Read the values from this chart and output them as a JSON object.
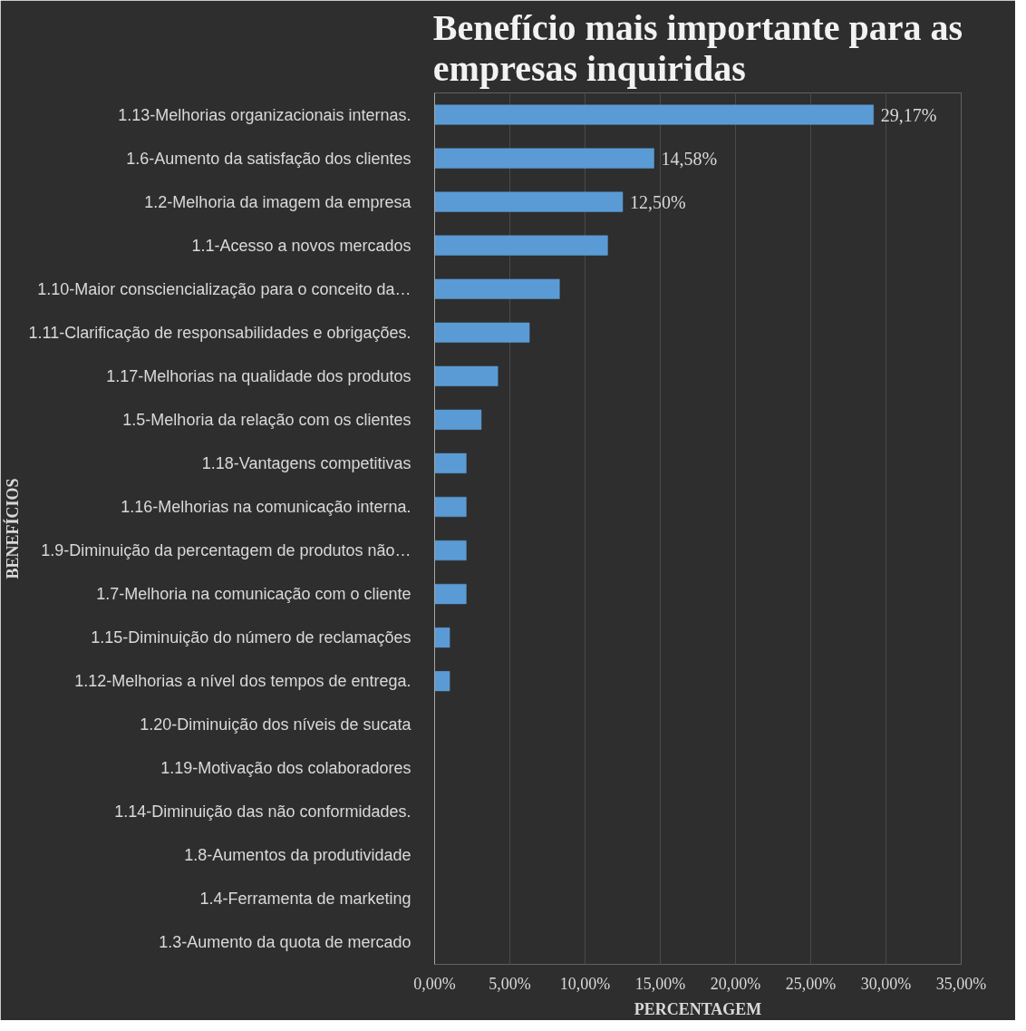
{
  "chart_data": {
    "type": "bar",
    "orientation": "horizontal",
    "title": "Benefício mais importante para as empresas inquiridas",
    "xlabel": "PERCENTAGEM",
    "ylabel": "BENEFÍCIOS",
    "categories": [
      "1.13-Melhorias organizacionais internas.",
      "1.6-Aumento da satisfação dos clientes",
      "1.2-Melhoria da imagem da empresa",
      "1.1-Acesso a novos mercados",
      "1.10-Maior consciencialização para o conceito da…",
      "1.11-Clarificação de responsabilidades e obrigações.",
      "1.17-Melhorias na qualidade dos produtos",
      "1.5-Melhoria da relação com os clientes",
      "1.18-Vantagens competitivas",
      "1.16-Melhorias na comunicação interna.",
      "1.9-Diminuição da percentagem de produtos não…",
      "1.7-Melhoria na comunicação com o cliente",
      "1.15-Diminuição do número de reclamações",
      "1.12-Melhorias a nível dos tempos de entrega.",
      "1.20-Diminuição dos níveis de sucata",
      "1.19-Motivação dos colaboradores",
      "1.14-Diminuição das não conformidades.",
      "1.8-Aumentos da produtividade",
      "1.4-Ferramenta de marketing",
      "1.3-Aumento da quota de mercado"
    ],
    "values": [
      29.17,
      14.58,
      12.5,
      11.5,
      8.3,
      6.3,
      4.2,
      3.1,
      2.1,
      2.1,
      2.1,
      2.1,
      1.0,
      1.0,
      0,
      0,
      0,
      0,
      0,
      0
    ],
    "value_labels": [
      "29,17%",
      "14,58%",
      "12,50%",
      null,
      null,
      null,
      null,
      null,
      null,
      null,
      null,
      null,
      null,
      null,
      null,
      null,
      null,
      null,
      null,
      null
    ],
    "color": "#5b9bd5",
    "xlim": [
      0,
      35
    ],
    "xticks": [
      {
        "value": 0,
        "label": "0,00%"
      },
      {
        "value": 5,
        "label": "5,00%"
      },
      {
        "value": 10,
        "label": "10,00%"
      },
      {
        "value": 15,
        "label": "15,00%"
      },
      {
        "value": 20,
        "label": "20,00%"
      },
      {
        "value": 25,
        "label": "25,00%"
      },
      {
        "value": 30,
        "label": "30,00%"
      },
      {
        "value": 35,
        "label": "35,00%"
      }
    ],
    "grid": "x"
  }
}
